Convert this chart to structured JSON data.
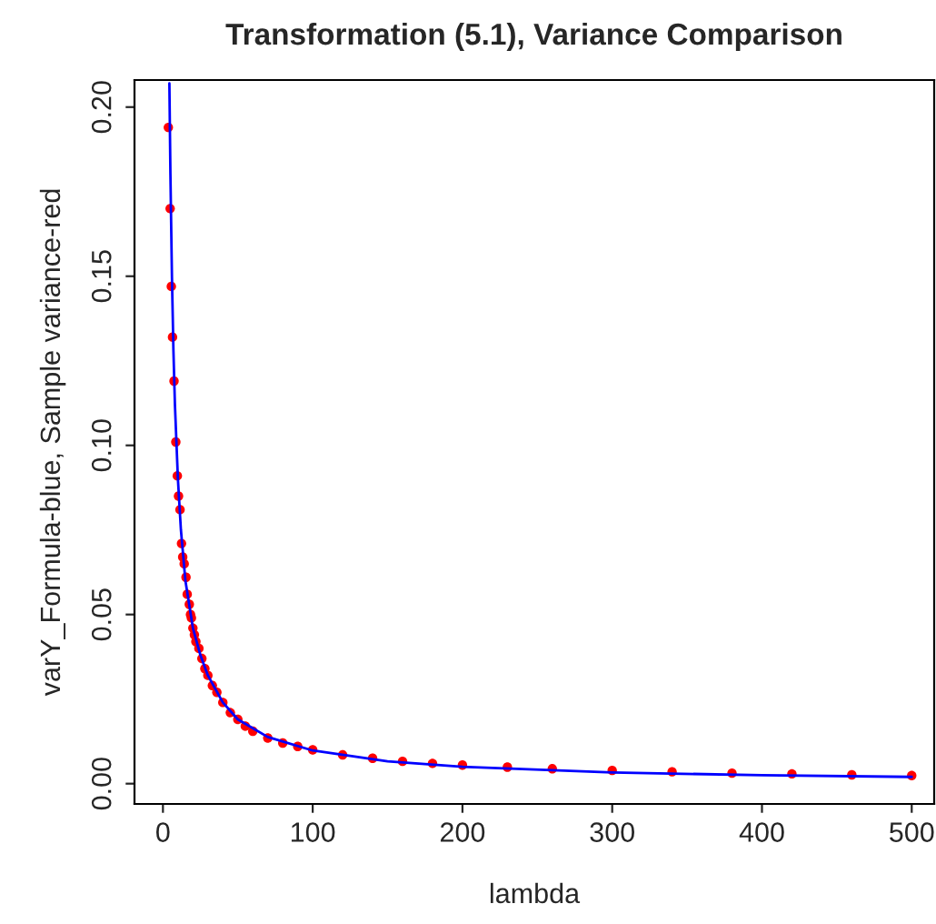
{
  "chart_data": {
    "type": "scatter",
    "title": "Transformation (5.1), Variance Comparison",
    "xlabel": "lambda",
    "ylabel": "varY_Formula-blue, Sample variance-red",
    "xlim": [
      -19,
      515
    ],
    "ylim": [
      -0.006,
      0.208
    ],
    "xticks": [
      0,
      100,
      200,
      300,
      400,
      500
    ],
    "yticks": [
      {
        "value": 0,
        "label": "0.00"
      },
      {
        "value": 0.05,
        "label": "0.05"
      },
      {
        "value": 0.1,
        "label": "0.10"
      },
      {
        "value": 0.15,
        "label": "0.15"
      },
      {
        "value": 0.2,
        "label": "0.20"
      }
    ],
    "grid": false,
    "series": [
      {
        "type": "scatter",
        "color": "#ff0000",
        "marker": "circle",
        "x": [
          3.6,
          4.8,
          5.6,
          6.4,
          7.4,
          8.6,
          9.6,
          10.4,
          11.4,
          12.4,
          13.2,
          14.2,
          15.4,
          16.2,
          17.6,
          18.4,
          19,
          20,
          21,
          22,
          24,
          26,
          28,
          30,
          33,
          36,
          40,
          45,
          50,
          55,
          60,
          70,
          80,
          90,
          100,
          120,
          140,
          160,
          180,
          200,
          230,
          260,
          300,
          340,
          380,
          420,
          460,
          500
        ],
        "values": [
          0.194,
          0.17,
          0.147,
          0.132,
          0.119,
          0.101,
          0.091,
          0.085,
          0.081,
          0.071,
          0.067,
          0.065,
          0.061,
          0.056,
          0.053,
          0.05,
          0.049,
          0.046,
          0.044,
          0.042,
          0.04,
          0.037,
          0.034,
          0.032,
          0.029,
          0.027,
          0.024,
          0.021,
          0.019,
          0.017,
          0.0155,
          0.0135,
          0.012,
          0.011,
          0.01,
          0.0085,
          0.0075,
          0.0066,
          0.006,
          0.0055,
          0.0049,
          0.0044,
          0.0039,
          0.0035,
          0.0031,
          0.0029,
          0.0026,
          0.0024
        ]
      },
      {
        "type": "line",
        "color": "#0000ff",
        "marker": "none",
        "line_style": "solid",
        "x": [
          4.3,
          5,
          6,
          7,
          8,
          10,
          12,
          15,
          20,
          25,
          30,
          40,
          50,
          70,
          100,
          150,
          200,
          300,
          400,
          500
        ],
        "values": [
          0.207,
          0.18,
          0.15,
          0.128,
          0.112,
          0.09,
          0.075,
          0.06,
          0.046,
          0.038,
          0.032,
          0.024,
          0.019,
          0.0138,
          0.0098,
          0.0066,
          0.005,
          0.0033,
          0.0025,
          0.002
        ]
      }
    ],
    "legend": false
  }
}
